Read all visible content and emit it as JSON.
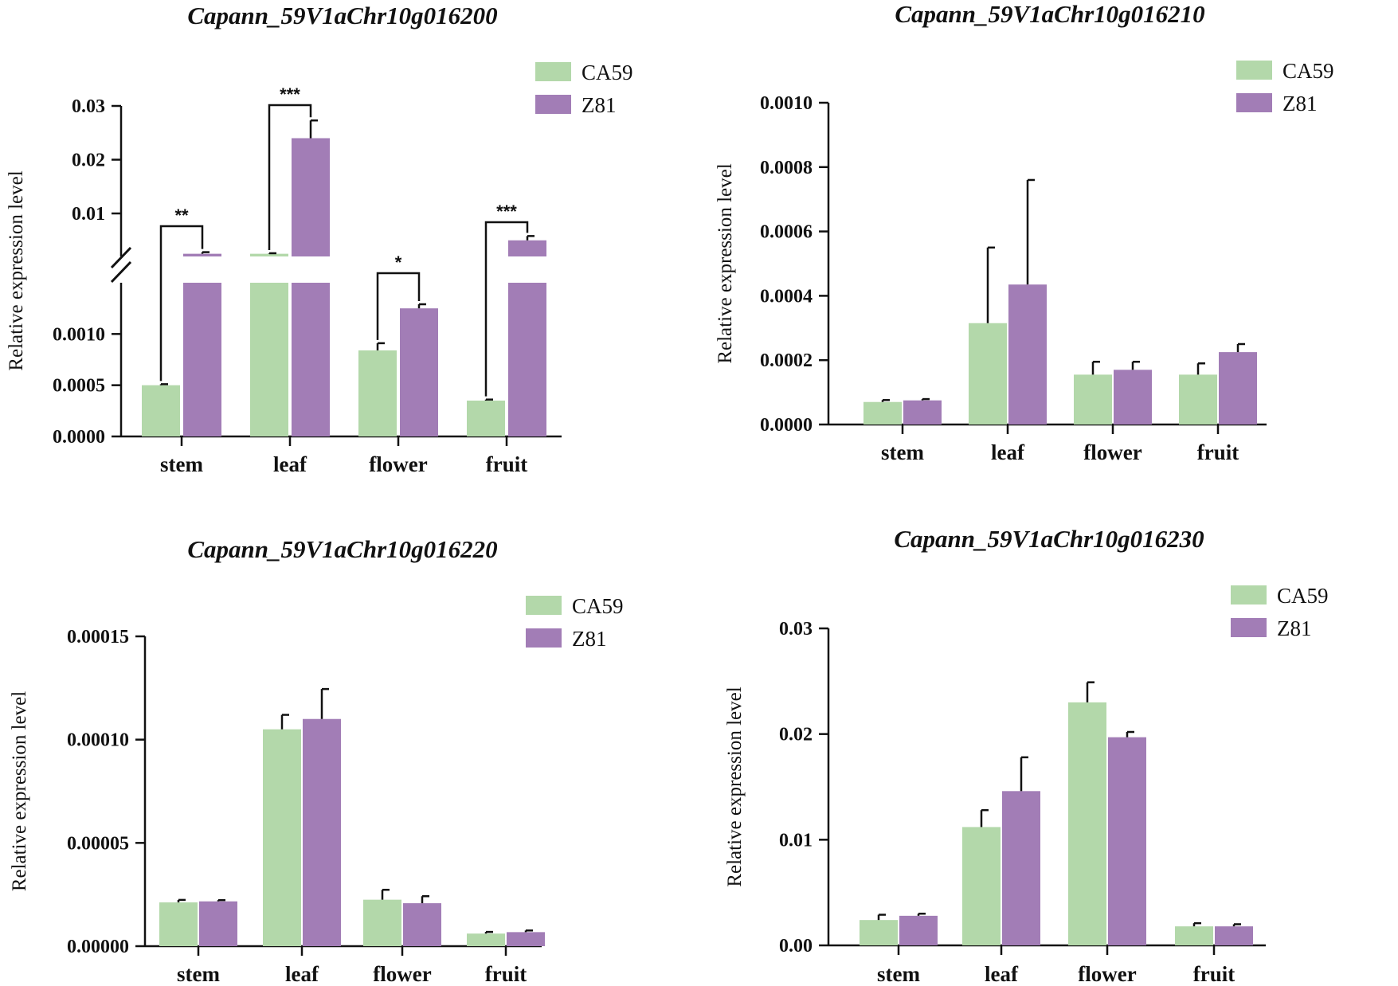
{
  "colors": {
    "CA59": "#b3d8aa",
    "Z81": "#a27db6",
    "axis": "#111111"
  },
  "legend": [
    "CA59",
    "Z81"
  ],
  "chart_data": [
    {
      "type": "bar",
      "title": "Capann_59V1aChr10g016200",
      "ylabel": "Relative expression level",
      "categories": [
        "stem",
        "leaf",
        "flower",
        "fruit"
      ],
      "broken_axis": true,
      "lower_range": [
        0,
        0.0015
      ],
      "upper_range": [
        0.002,
        0.03
      ],
      "lower_ticks": [
        "0.0000",
        "0.0005",
        "0.0010"
      ],
      "upper_ticks": [
        "0.01",
        "0.02",
        "0.03"
      ],
      "series": [
        {
          "name": "CA59",
          "values": [
            0.0005,
            0.0025,
            0.00084,
            0.00035
          ],
          "errors": [
            1e-05,
            0.0001,
            7e-05,
            1e-05
          ]
        },
        {
          "name": "Z81",
          "values": [
            0.0025,
            0.024,
            0.00125,
            0.005
          ],
          "errors": [
            0.0003,
            0.0033,
            4e-05,
            0.0008
          ]
        }
      ],
      "significance": [
        "**",
        "***",
        "*",
        "***"
      ]
    },
    {
      "type": "bar",
      "title": "Capann_59V1aChr10g016210",
      "ylabel": "Relative expression level",
      "categories": [
        "stem",
        "leaf",
        "flower",
        "fruit"
      ],
      "ylim": [
        0,
        0.001
      ],
      "yticks": [
        "0.0000",
        "0.0002",
        "0.0004",
        "0.0006",
        "0.0008",
        "0.0010"
      ],
      "series": [
        {
          "name": "CA59",
          "values": [
            7e-05,
            0.000315,
            0.000155,
            0.000155
          ],
          "errors": [
            6e-06,
            0.000235,
            4e-05,
            3.5e-05
          ]
        },
        {
          "name": "Z81",
          "values": [
            7.5e-05,
            0.000435,
            0.00017,
            0.000225
          ],
          "errors": [
            4e-06,
            0.000325,
            2.5e-05,
            2.5e-05
          ]
        }
      ]
    },
    {
      "type": "bar",
      "title": "Capann_59V1aChr10g016220",
      "ylabel": "Relative expression level",
      "categories": [
        "stem",
        "leaf",
        "flower",
        "fruit"
      ],
      "ylim": [
        0,
        0.00015
      ],
      "yticks": [
        "0.00000",
        "0.00005",
        "0.00010",
        "0.00015"
      ],
      "series": [
        {
          "name": "CA59",
          "values": [
            2.12e-05,
            0.000105,
            2.25e-05,
            6.1e-06
          ],
          "errors": [
            1.2e-06,
            7e-06,
            4.8e-06,
            8e-07
          ]
        },
        {
          "name": "Z81",
          "values": [
            2.17e-05,
            0.00011,
            2.08e-05,
            6.8e-06
          ],
          "errors": [
            6e-07,
            1.45e-05,
            3.4e-06,
            8e-07
          ]
        }
      ]
    },
    {
      "type": "bar",
      "title": "Capann_59V1aChr10g016230",
      "ylabel": "Relative expression level",
      "categories": [
        "stem",
        "leaf",
        "flower",
        "fruit"
      ],
      "ylim": [
        0,
        0.03
      ],
      "yticks": [
        "0.00",
        "0.01",
        "0.02",
        "0.03"
      ],
      "series": [
        {
          "name": "CA59",
          "values": [
            0.0024,
            0.0112,
            0.023,
            0.0018
          ],
          "errors": [
            0.0005,
            0.0016,
            0.0019,
            0.0003
          ]
        },
        {
          "name": "Z81",
          "values": [
            0.0028,
            0.0146,
            0.0197,
            0.0018
          ],
          "errors": [
            0.0002,
            0.0032,
            0.0005,
            0.0002
          ]
        }
      ]
    }
  ]
}
